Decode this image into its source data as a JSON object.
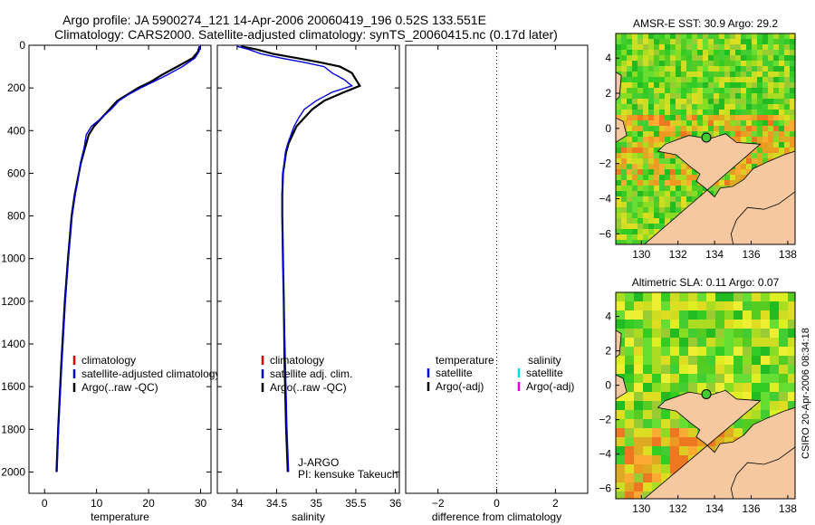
{
  "header": {
    "title_line1": "Argo profile: JA 5900274_121 14-Apr-2006 20060419_196 0.52S 133.551E",
    "title_line2": "Climatology: CARS2000. Satellite-adjusted climatology: synTS_20060415.nc (0.17d later)"
  },
  "side_label": "CSIRO 20-Apr-2006 08:34:18",
  "chart_data": [
    {
      "id": "temperature",
      "type": "line",
      "xlabel": "temperature",
      "ylabel": "",
      "xlim": [
        -3,
        32
      ],
      "ylim": [
        2100,
        0
      ],
      "xticks": [
        0,
        10,
        20,
        30
      ],
      "yticks": [
        0,
        200,
        400,
        600,
        800,
        1000,
        1200,
        1400,
        1600,
        1800,
        2000
      ],
      "legend": [
        "climatology",
        "satellite-adjusted climatology",
        "Argo(..raw -QC)"
      ],
      "legend_colors": [
        "#dd0000",
        "#0000dd",
        "#000000"
      ],
      "series": [
        {
          "name": "Argo(..raw -QC)",
          "color": "#000000",
          "depth": [
            5,
            30,
            60,
            100,
            140,
            170,
            200,
            230,
            260,
            300,
            340,
            380,
            420,
            480,
            550,
            650,
            700,
            800,
            1000,
            1200,
            1500,
            1800,
            2000
          ],
          "values": [
            29.8,
            29.5,
            28.5,
            25.5,
            22.5,
            20.5,
            18.0,
            16.0,
            14.0,
            12.5,
            11.0,
            9.5,
            8.5,
            7.8,
            7.0,
            6.2,
            5.8,
            5.2,
            4.5,
            3.9,
            3.2,
            2.6,
            2.3
          ]
        },
        {
          "name": "satellite-adjusted climatology",
          "color": "#0000dd",
          "depth": [
            5,
            30,
            60,
            100,
            140,
            170,
            200,
            230,
            260,
            300,
            340,
            380,
            420,
            480,
            550,
            650,
            700,
            800,
            1000,
            1200,
            1500,
            1800,
            2000
          ],
          "values": [
            29.9,
            29.7,
            28.9,
            26.5,
            23.5,
            21.0,
            18.5,
            16.2,
            14.3,
            12.8,
            11.0,
            9.0,
            8.0,
            7.6,
            6.9,
            6.3,
            5.9,
            5.3,
            4.6,
            4.0,
            3.3,
            2.7,
            2.4
          ]
        }
      ]
    },
    {
      "id": "salinity",
      "type": "line",
      "xlabel": "salinity",
      "xlim": [
        33.75,
        36.05
      ],
      "ylim": [
        2100,
        0
      ],
      "xticks": [
        34,
        34.5,
        35,
        35.5,
        36
      ],
      "xticklabels": [
        "34",
        "34.5",
        "35",
        "35.5",
        "36"
      ],
      "yticks": [
        0,
        200,
        400,
        600,
        800,
        1000,
        1200,
        1400,
        1600,
        1800,
        2000
      ],
      "legend": [
        "climatology",
        "satellite adj. clim.",
        "Argo(..raw -QC)"
      ],
      "legend_colors": [
        "#dd0000",
        "#0000dd",
        "#000000"
      ],
      "annotation": [
        "J-ARGO",
        "PI: kensuke Takeuchi"
      ],
      "series": [
        {
          "name": "Argo(..raw -QC)",
          "color": "#000000",
          "depth": [
            5,
            20,
            40,
            60,
            80,
            100,
            130,
            160,
            190,
            220,
            260,
            300,
            340,
            380,
            420,
            460,
            500,
            600,
            700,
            800,
            1000,
            1200,
            1500,
            1800,
            2000
          ],
          "values": [
            34.05,
            34.25,
            34.45,
            34.75,
            35.05,
            35.3,
            35.45,
            35.5,
            35.55,
            35.35,
            35.1,
            34.95,
            34.85,
            34.75,
            34.7,
            34.65,
            34.62,
            34.58,
            34.57,
            34.57,
            34.58,
            34.59,
            34.6,
            34.62,
            34.64
          ]
        },
        {
          "name": "satellite adj. clim.",
          "color": "#0000dd",
          "depth": [
            5,
            20,
            40,
            60,
            80,
            100,
            130,
            160,
            190,
            220,
            260,
            300,
            340,
            380,
            420,
            460,
            500,
            600,
            700,
            800,
            1000,
            1200,
            1500,
            1800,
            2000
          ],
          "values": [
            34.0,
            34.15,
            34.3,
            34.55,
            34.85,
            35.1,
            35.2,
            35.35,
            35.45,
            35.2,
            35.0,
            34.85,
            34.78,
            34.72,
            34.68,
            34.64,
            34.61,
            34.58,
            34.57,
            34.57,
            34.58,
            34.59,
            34.61,
            34.63,
            34.65
          ]
        }
      ]
    },
    {
      "id": "difference",
      "type": "line",
      "xlabel": "difference from climatology",
      "xlim": [
        -3.1,
        3.1
      ],
      "ylim": [
        2100,
        0
      ],
      "xticks": [
        -2,
        0,
        2
      ],
      "legend_left_title": "temperature",
      "legend_right_title": "salinity",
      "legend_left": [
        "satellite",
        "Argo(-adj)"
      ],
      "legend_left_colors": [
        "#0000dd",
        "#000000"
      ],
      "legend_right": [
        "satellite",
        "Argo(-adj)"
      ],
      "legend_right_colors": [
        "#00dddd",
        "#dd00dd"
      ],
      "series": []
    },
    {
      "id": "sst_map",
      "type": "heatmap",
      "title": "AMSR-E SST: 30.9 Argo: 29.2",
      "xlim": [
        128.6,
        138.4
      ],
      "ylim": [
        -6.6,
        5.4
      ],
      "xticks": [
        130,
        132,
        134,
        136,
        138
      ],
      "yticks": [
        -6,
        -4,
        -2,
        0,
        2,
        4
      ],
      "marker": {
        "lon": 133.551,
        "lat": -0.52
      }
    },
    {
      "id": "sla_map",
      "type": "heatmap",
      "title": "Altimetric SLA: 0.11 Argo: 0.07",
      "xlim": [
        128.6,
        138.4
      ],
      "ylim": [
        -6.6,
        5.4
      ],
      "xticks": [
        130,
        132,
        134,
        136,
        138
      ],
      "yticks": [
        -6,
        -4,
        -2,
        0,
        2,
        4
      ],
      "marker": {
        "lon": 133.551,
        "lat": -0.52
      }
    }
  ]
}
